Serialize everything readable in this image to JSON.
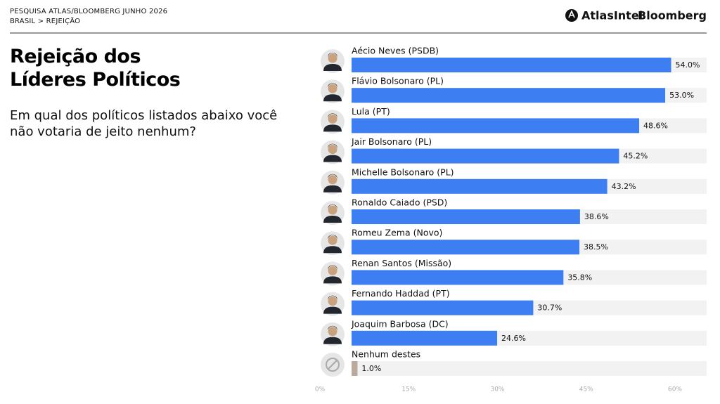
{
  "header": {
    "kicker": "PESQUISA ATLAS/BLOOMBERG JUNHO 2026",
    "breadcrumb": "BRASIL > REJEIÇÃO",
    "brand_left": "AtlasIntel",
    "brand_right": "Bloomberg"
  },
  "chart_data": {
    "type": "bar",
    "orientation": "horizontal",
    "title": "Rejeição dos Líderes Políticos",
    "subtitle": "Em qual dos políticos listados abaixo você não votaria de jeito nenhum?",
    "categories": [
      "Aécio Neves (PSDB)",
      "Flávio Bolsonaro (PL)",
      "Lula (PT)",
      "Jair Bolsonaro (PL)",
      "Michelle Bolsonaro (PL)",
      "Ronaldo Caiado (PSD)",
      "Romeu Zema (Novo)",
      "Renan Santos (Missão)",
      "Fernando Haddad (PT)",
      "Joaquim Barbosa (DC)",
      "Nenhum destes"
    ],
    "values": [
      54.0,
      53.0,
      48.6,
      45.2,
      43.2,
      38.6,
      38.5,
      35.8,
      30.7,
      24.6,
      1.0
    ],
    "value_labels": [
      "54.0%",
      "53.0%",
      "48.6%",
      "45.2%",
      "43.2%",
      "38.6%",
      "38.5%",
      "35.8%",
      "30.7%",
      "24.6%",
      "1.0%"
    ],
    "colors": [
      "#3d7ff2",
      "#3d7ff2",
      "#3d7ff2",
      "#3d7ff2",
      "#3d7ff2",
      "#3d7ff2",
      "#3d7ff2",
      "#3d7ff2",
      "#3d7ff2",
      "#3d7ff2",
      "#b9aa9c"
    ],
    "xlim": [
      0,
      60
    ],
    "xticks": [
      {
        "value": 0,
        "label": "0%"
      },
      {
        "value": 15,
        "label": "15%"
      },
      {
        "value": 30,
        "label": "30%"
      },
      {
        "value": 45,
        "label": "45%"
      },
      {
        "value": 60,
        "label": "60%"
      }
    ]
  }
}
